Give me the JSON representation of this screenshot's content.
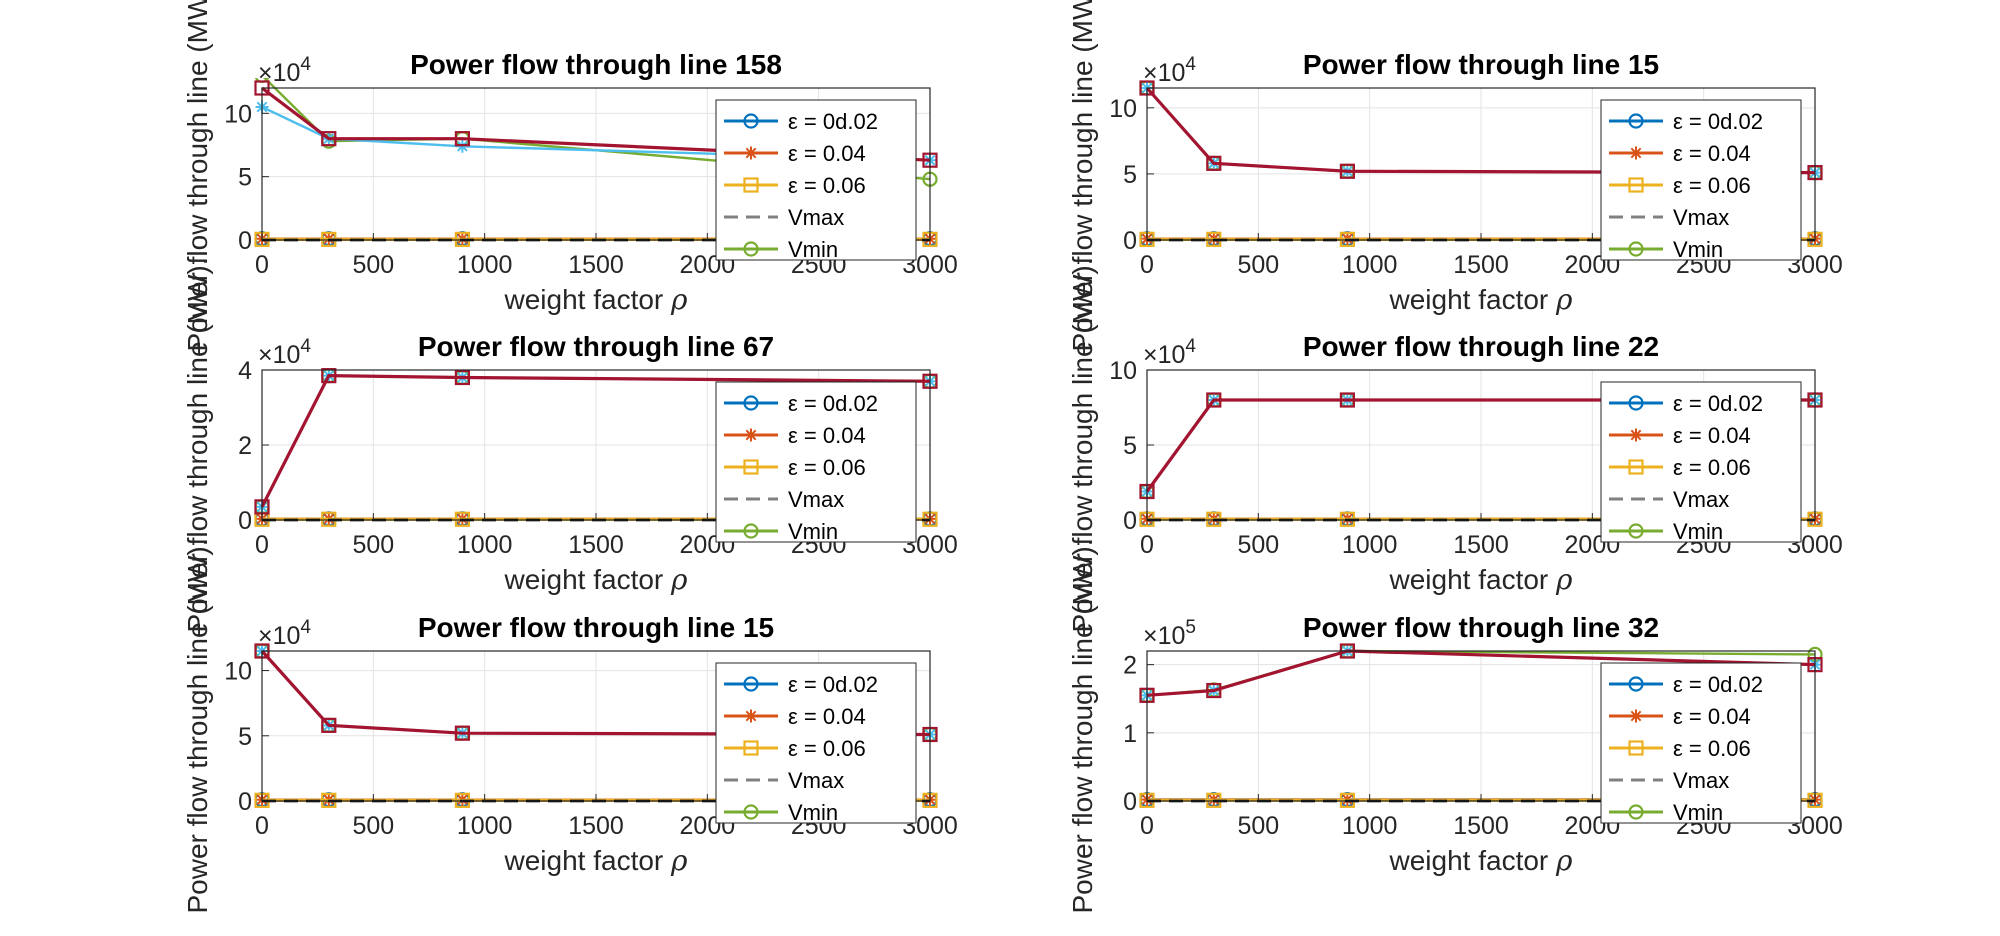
{
  "figure": {
    "legend_labels": [
      "ε  = 0d.02",
      "ε  = 0.04",
      "ε  = 0.06",
      "Vmax",
      "Vmin"
    ],
    "legend_placement": "northeast (inside axes)",
    "grid": true
  },
  "chart_data": [
    {
      "type": "line",
      "title": "Power flow through line 158",
      "xlabel": "weight factor ρ",
      "ylabel": "Power flow through line (MW).",
      "exponent_base": "×10",
      "exponent_power": "4",
      "xlim": [
        0,
        3000
      ],
      "ylim": [
        0,
        12
      ],
      "xticks": [
        0,
        500,
        1000,
        1500,
        2000,
        2500,
        3000
      ],
      "yticks": [
        0,
        5,
        10
      ],
      "x": [
        0,
        300,
        900,
        3000
      ],
      "series": [
        {
          "name": "ε  = 0d.02",
          "color": "#0072BD",
          "marker": "o",
          "values": [
            0.1,
            0.1,
            0.1,
            0.1
          ]
        },
        {
          "name": "ε  = 0.04",
          "color": "#D95319",
          "marker": "*",
          "values": [
            0.1,
            0.1,
            0.1,
            0.1
          ]
        },
        {
          "name": "ε  = 0.06",
          "color": "#EDB120",
          "marker": "s",
          "values": [
            0.05,
            0.05,
            0.05,
            0.05
          ]
        },
        {
          "name": "Vmax",
          "color": "#808080",
          "dash": true,
          "values": [
            0,
            0,
            0,
            0
          ]
        },
        {
          "name": "Vmin",
          "color": "#77AC30",
          "marker": "o",
          "values": [
            13.0,
            7.8,
            8.0,
            4.8
          ]
        },
        {
          "color": "#000000",
          "dash": true,
          "values": [
            0,
            0,
            0,
            0
          ]
        },
        {
          "color": "#4DBEEE",
          "marker": "*",
          "values": [
            10.5,
            8.0,
            7.4,
            6.3
          ]
        },
        {
          "color": "#A2142F",
          "marker": "s",
          "values": [
            12.0,
            8.0,
            8.0,
            6.3
          ]
        }
      ]
    },
    {
      "type": "line",
      "title": "Power flow through line 15",
      "xlabel": "weight factor ρ",
      "ylabel": "Power flow through line (MW).",
      "exponent_base": "×10",
      "exponent_power": "4",
      "xlim": [
        0,
        3000
      ],
      "ylim": [
        0,
        11.5
      ],
      "xticks": [
        0,
        500,
        1000,
        1500,
        2000,
        2500,
        3000
      ],
      "yticks": [
        0,
        5,
        10
      ],
      "x": [
        0,
        300,
        900,
        3000
      ],
      "series": [
        {
          "name": "ε  = 0d.02",
          "color": "#0072BD",
          "marker": "o",
          "values": [
            0.1,
            0.1,
            0.1,
            0.1
          ]
        },
        {
          "name": "ε  = 0.04",
          "color": "#D95319",
          "marker": "*",
          "values": [
            0.1,
            0.1,
            0.1,
            0.1
          ]
        },
        {
          "name": "ε  = 0.06",
          "color": "#EDB120",
          "marker": "s",
          "values": [
            0.05,
            0.05,
            0.05,
            0.05
          ]
        },
        {
          "name": "Vmax",
          "color": "#808080",
          "dash": true,
          "values": [
            0,
            0,
            0,
            0
          ]
        },
        {
          "name": "Vmin",
          "color": "#77AC30",
          "marker": "o",
          "values": [
            11.5,
            5.8,
            5.2,
            5.1
          ]
        },
        {
          "color": "#000000",
          "dash": true,
          "values": [
            0,
            0,
            0,
            0
          ]
        },
        {
          "color": "#4DBEEE",
          "marker": "*",
          "values": [
            11.5,
            5.8,
            5.2,
            5.1
          ]
        },
        {
          "color": "#A2142F",
          "marker": "s",
          "values": [
            11.5,
            5.8,
            5.2,
            5.1
          ]
        }
      ]
    },
    {
      "type": "line",
      "title": "Power flow through line 67",
      "xlabel": "weight factor ρ",
      "ylabel": "Power flow through line (MW).",
      "exponent_base": "×10",
      "exponent_power": "4",
      "xlim": [
        0,
        3000
      ],
      "ylim": [
        0,
        4
      ],
      "xticks": [
        0,
        500,
        1000,
        1500,
        2000,
        2500,
        3000
      ],
      "yticks": [
        0,
        2,
        4
      ],
      "x": [
        0,
        300,
        900,
        3000
      ],
      "series": [
        {
          "name": "ε  = 0d.02",
          "color": "#0072BD",
          "marker": "o",
          "values": [
            0.03,
            0.03,
            0.03,
            0.03
          ]
        },
        {
          "name": "ε  = 0.04",
          "color": "#D95319",
          "marker": "*",
          "values": [
            0.03,
            0.03,
            0.03,
            0.03
          ]
        },
        {
          "name": "ε  = 0.06",
          "color": "#EDB120",
          "marker": "s",
          "values": [
            0.02,
            0.02,
            0.02,
            0.02
          ]
        },
        {
          "name": "Vmax",
          "color": "#808080",
          "dash": true,
          "values": [
            0,
            0,
            0,
            0
          ]
        },
        {
          "name": "Vmin",
          "color": "#77AC30",
          "marker": "o",
          "values": [
            0.35,
            3.85,
            3.8,
            3.7
          ]
        },
        {
          "color": "#000000",
          "dash": true,
          "values": [
            0,
            0,
            0,
            0
          ]
        },
        {
          "color": "#4DBEEE",
          "marker": "*",
          "values": [
            0.35,
            3.85,
            3.8,
            3.7
          ]
        },
        {
          "color": "#A2142F",
          "marker": "s",
          "values": [
            0.35,
            3.85,
            3.8,
            3.7
          ]
        }
      ]
    },
    {
      "type": "line",
      "title": "Power flow through line 22",
      "xlabel": "weight factor ρ",
      "ylabel": "Power flow through line (MW).",
      "exponent_base": "×10",
      "exponent_power": "4",
      "xlim": [
        0,
        3000
      ],
      "ylim": [
        0,
        10
      ],
      "xticks": [
        0,
        500,
        1000,
        1500,
        2000,
        2500,
        3000
      ],
      "yticks": [
        0,
        5,
        10
      ],
      "x": [
        0,
        300,
        900,
        3000
      ],
      "series": [
        {
          "name": "ε  = 0d.02",
          "color": "#0072BD",
          "marker": "o",
          "values": [
            0.08,
            0.08,
            0.08,
            0.08
          ]
        },
        {
          "name": "ε  = 0.04",
          "color": "#D95319",
          "marker": "*",
          "values": [
            0.08,
            0.08,
            0.08,
            0.08
          ]
        },
        {
          "name": "ε  = 0.06",
          "color": "#EDB120",
          "marker": "s",
          "values": [
            0.05,
            0.05,
            0.05,
            0.05
          ]
        },
        {
          "name": "Vmax",
          "color": "#808080",
          "dash": true,
          "values": [
            0,
            0,
            0,
            0
          ]
        },
        {
          "name": "Vmin",
          "color": "#77AC30",
          "marker": "o",
          "values": [
            1.9,
            8.0,
            8.0,
            8.0
          ]
        },
        {
          "color": "#000000",
          "dash": true,
          "values": [
            0,
            0,
            0,
            0
          ]
        },
        {
          "color": "#4DBEEE",
          "marker": "*",
          "values": [
            1.9,
            8.0,
            8.0,
            8.0
          ]
        },
        {
          "color": "#A2142F",
          "marker": "s",
          "values": [
            1.9,
            8.0,
            8.0,
            8.0
          ]
        }
      ]
    },
    {
      "type": "line",
      "title": "Power flow through line 15",
      "xlabel": "weight factor ρ",
      "ylabel": "Power flow through line (MW).",
      "exponent_base": "×10",
      "exponent_power": "4",
      "xlim": [
        0,
        3000
      ],
      "ylim": [
        0,
        11.5
      ],
      "xticks": [
        0,
        500,
        1000,
        1500,
        2000,
        2500,
        3000
      ],
      "yticks": [
        0,
        5,
        10
      ],
      "x": [
        0,
        300,
        900,
        3000
      ],
      "series": [
        {
          "name": "ε  = 0d.02",
          "color": "#0072BD",
          "marker": "o",
          "values": [
            0.1,
            0.1,
            0.1,
            0.1
          ]
        },
        {
          "name": "ε  = 0.04",
          "color": "#D95319",
          "marker": "*",
          "values": [
            0.1,
            0.1,
            0.1,
            0.1
          ]
        },
        {
          "name": "ε  = 0.06",
          "color": "#EDB120",
          "marker": "s",
          "values": [
            0.05,
            0.05,
            0.05,
            0.05
          ]
        },
        {
          "name": "Vmax",
          "color": "#808080",
          "dash": true,
          "values": [
            0,
            0,
            0,
            0
          ]
        },
        {
          "name": "Vmin",
          "color": "#77AC30",
          "marker": "o",
          "values": [
            11.5,
            5.8,
            5.2,
            5.1
          ]
        },
        {
          "color": "#000000",
          "dash": true,
          "values": [
            0,
            0,
            0,
            0
          ]
        },
        {
          "color": "#4DBEEE",
          "marker": "*",
          "values": [
            11.5,
            5.8,
            5.2,
            5.1
          ]
        },
        {
          "color": "#A2142F",
          "marker": "s",
          "values": [
            11.5,
            5.8,
            5.2,
            5.1
          ]
        }
      ]
    },
    {
      "type": "line",
      "title": "Power flow through line 32",
      "xlabel": "weight factor ρ",
      "ylabel": "Power flow through line (MW).",
      "exponent_base": "×10",
      "exponent_power": "5",
      "xlim": [
        0,
        3000
      ],
      "ylim": [
        0,
        2.2
      ],
      "xticks": [
        0,
        500,
        1000,
        1500,
        2000,
        2500,
        3000
      ],
      "yticks": [
        0,
        1,
        2
      ],
      "x": [
        0,
        300,
        900,
        3000
      ],
      "series": [
        {
          "name": "ε  = 0d.02",
          "color": "#0072BD",
          "marker": "o",
          "values": [
            0.02,
            0.02,
            0.02,
            0.02
          ]
        },
        {
          "name": "ε  = 0.04",
          "color": "#D95319",
          "marker": "*",
          "values": [
            0.02,
            0.02,
            0.02,
            0.02
          ]
        },
        {
          "name": "ε  = 0.06",
          "color": "#EDB120",
          "marker": "s",
          "values": [
            0.01,
            0.01,
            0.01,
            0.01
          ]
        },
        {
          "name": "Vmax",
          "color": "#808080",
          "dash": true,
          "values": [
            0,
            0,
            0,
            0
          ]
        },
        {
          "name": "Vmin",
          "color": "#77AC30",
          "marker": "o",
          "values": [
            1.55,
            1.63,
            2.2,
            2.15
          ]
        },
        {
          "color": "#000000",
          "dash": true,
          "values": [
            0,
            0,
            0,
            0
          ]
        },
        {
          "color": "#4DBEEE",
          "marker": "*",
          "values": [
            1.55,
            1.62,
            2.2,
            2.0
          ]
        },
        {
          "color": "#A2142F",
          "marker": "s",
          "values": [
            1.55,
            1.62,
            2.2,
            2.0
          ]
        }
      ]
    }
  ]
}
